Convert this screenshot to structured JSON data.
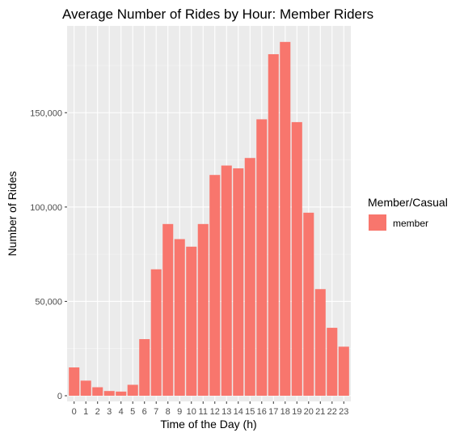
{
  "chart_data": {
    "type": "bar",
    "title": "Average Number of Rides by Hour: Member Riders",
    "xlabel": "Time of the Day (h)",
    "ylabel": "Number of Rides",
    "categories": [
      "0",
      "1",
      "2",
      "3",
      "4",
      "5",
      "6",
      "7",
      "8",
      "9",
      "10",
      "11",
      "12",
      "13",
      "14",
      "15",
      "16",
      "17",
      "18",
      "19",
      "20",
      "21",
      "22",
      "23"
    ],
    "series": [
      {
        "name": "member",
        "values": [
          15000,
          8000,
          4500,
          2500,
          2200,
          5800,
          30000,
          67000,
          91000,
          83000,
          79000,
          91000,
          117000,
          122000,
          120500,
          126000,
          146500,
          181000,
          187500,
          145000,
          97000,
          56500,
          36000,
          26000
        ]
      }
    ],
    "ylim": [
      -3000,
      196000
    ],
    "yticks": [
      0,
      50000,
      100000,
      150000
    ],
    "ytick_labels": [
      "0",
      "50,000",
      "100,000",
      "150,000"
    ],
    "grid": true,
    "legend": {
      "title": "Member/Casual",
      "placement": "right"
    },
    "colors": {
      "bar": "#F8766D",
      "panel": "#EBEBEB",
      "grid_major": "#FFFFFF",
      "grid_minor": "#F5F5F5"
    }
  }
}
